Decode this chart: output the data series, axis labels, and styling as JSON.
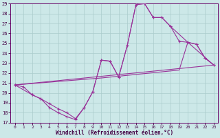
{
  "xlabel": "Windchill (Refroidissement éolien,°C)",
  "bg_color": "#cce8e8",
  "grid_color": "#aacccc",
  "line_color": "#993399",
  "xlim": [
    -0.5,
    23.5
  ],
  "ylim": [
    17,
    29
  ],
  "yticks": [
    17,
    18,
    19,
    20,
    21,
    22,
    23,
    24,
    25,
    26,
    27,
    28,
    29
  ],
  "xticks": [
    0,
    1,
    2,
    3,
    4,
    5,
    6,
    7,
    8,
    9,
    10,
    11,
    12,
    13,
    14,
    15,
    16,
    17,
    18,
    19,
    20,
    21,
    22,
    23
  ],
  "line1_x": [
    0,
    1,
    2,
    3,
    4,
    5,
    6,
    7,
    8,
    9,
    10,
    11,
    12,
    13,
    14,
    15,
    16,
    17,
    18,
    19,
    20,
    21,
    22,
    23
  ],
  "line1_y": [
    20.8,
    20.6,
    19.8,
    19.4,
    18.5,
    18.0,
    17.6,
    17.3,
    18.5,
    20.1,
    23.3,
    23.2,
    21.6,
    24.8,
    28.9,
    29.0,
    27.6,
    27.6,
    26.7,
    25.2,
    25.1,
    24.9,
    23.5,
    22.8
  ],
  "line1_markers": true,
  "line2_x": [
    0,
    2,
    3,
    4,
    5,
    6,
    7,
    8,
    9,
    10,
    11,
    12,
    13,
    14,
    15,
    16,
    17,
    18,
    20,
    21,
    22,
    23
  ],
  "line2_y": [
    20.8,
    19.8,
    19.4,
    18.9,
    18.4,
    18.0,
    17.4,
    18.5,
    20.1,
    23.3,
    23.2,
    21.6,
    24.8,
    28.9,
    29.0,
    27.6,
    27.6,
    26.7,
    25.1,
    24.9,
    23.5,
    22.8
  ],
  "line2_markers": true,
  "line3_x": [
    0,
    23
  ],
  "line3_y": [
    20.8,
    22.8
  ],
  "line3_markers": false,
  "line4_x": [
    0,
    10,
    19,
    20,
    23
  ],
  "line4_y": [
    20.8,
    21.5,
    22.3,
    25.1,
    22.8
  ],
  "line4_markers": false
}
